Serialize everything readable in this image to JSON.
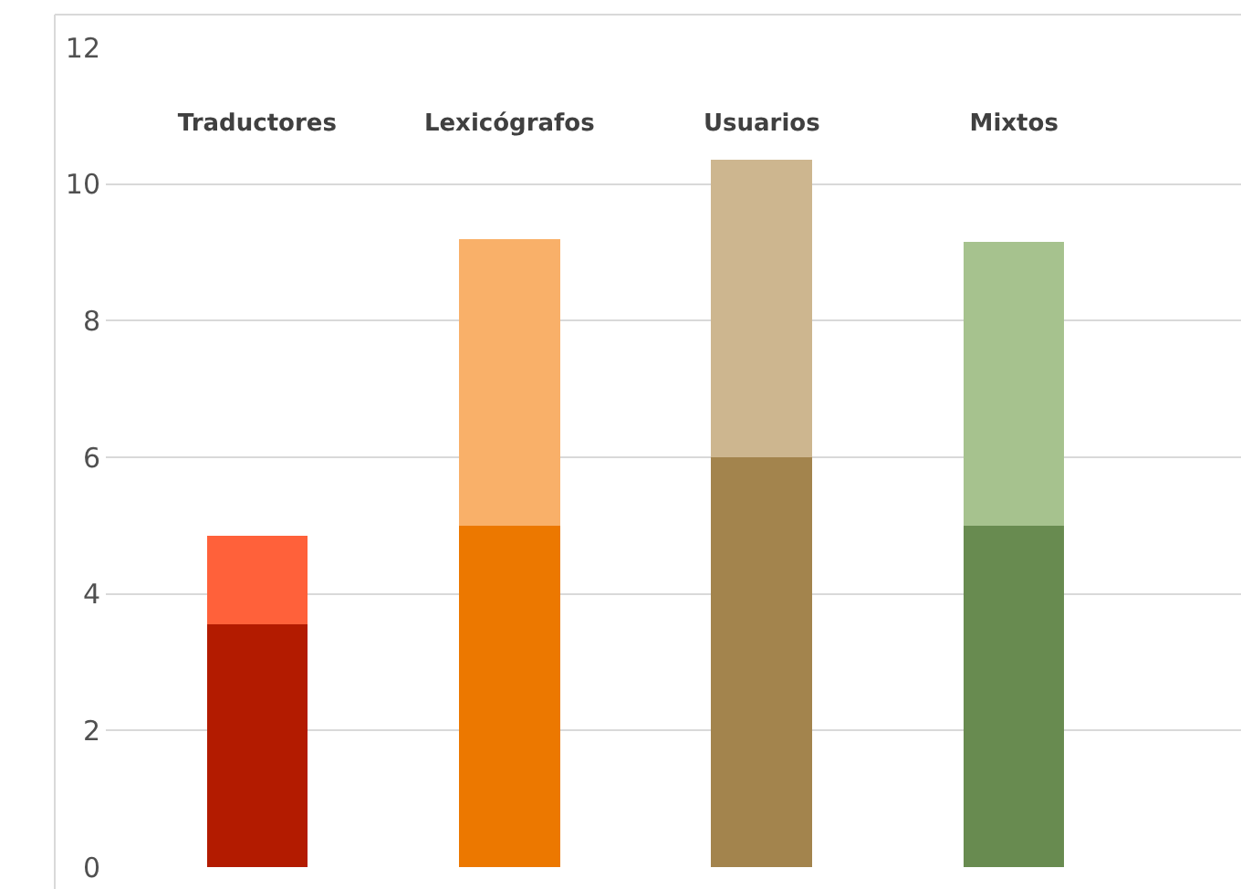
{
  "chart_data": {
    "type": "bar",
    "stacked": true,
    "categories": [
      "Traductores",
      "Lexicógrafos",
      "Usuarios",
      "Mixtos"
    ],
    "series": [
      {
        "colors": [
          "#b31b00",
          "#ec7800",
          "#a3844d",
          "#688b50"
        ],
        "values": [
          3.55,
          5,
          6,
          5
        ]
      },
      {
        "colors": [
          "#ff613a",
          "#f9b069",
          "#cdb68f",
          "#a6c28e"
        ],
        "values": [
          1.3,
          4.2,
          4.35,
          4.15
        ]
      }
    ],
    "ylim": [
      0,
      12
    ],
    "yticks": [
      0,
      2,
      4,
      6,
      8,
      10,
      12
    ],
    "grid": "y"
  }
}
